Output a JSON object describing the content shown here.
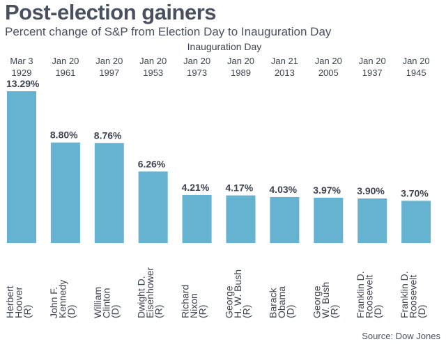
{
  "chart_data": {
    "type": "bar",
    "title": "Post-election gainers",
    "subtitle": "Percent change of S&P from Election Day to Inauguration Day",
    "top_axis_label": "Inauguration Day",
    "source": "Source: Dow Jones",
    "bar_color": "#66b3d1",
    "grid": false,
    "ylim": [
      0,
      13.29
    ],
    "categories": [
      {
        "date": [
          "Mar 3",
          "1929"
        ],
        "name": [
          "Herbert",
          "Hoover",
          "(R)"
        ]
      },
      {
        "date": [
          "Jan 20",
          "1961"
        ],
        "name": [
          "John F.",
          "Kennedy",
          "(D)"
        ]
      },
      {
        "date": [
          "Jan 20",
          "1997"
        ],
        "name": [
          "William",
          "Clinton",
          "(D)"
        ]
      },
      {
        "date": [
          "Jan 20",
          "1953"
        ],
        "name": [
          "Dwight D.",
          "Eisenhower",
          "(R)"
        ]
      },
      {
        "date": [
          "Jan 20",
          "1973"
        ],
        "name": [
          "Richard",
          "Nixon",
          "(R)"
        ]
      },
      {
        "date": [
          "Jan 20",
          "1989"
        ],
        "name": [
          "George",
          "H. W. Bush",
          "(R)"
        ]
      },
      {
        "date": [
          "Jan 21",
          "2013"
        ],
        "name": [
          "Barack",
          "Obama",
          "(D)"
        ]
      },
      {
        "date": [
          "Jan 20",
          "2005"
        ],
        "name": [
          "George",
          "W. Bush",
          "(R)"
        ]
      },
      {
        "date": [
          "Jan 20",
          "1937"
        ],
        "name": [
          "Franklin D.",
          "Roosevelt",
          "(D)"
        ]
      },
      {
        "date": [
          "Jan 20",
          "1945"
        ],
        "name": [
          "Franklin D.",
          "Roosevelt",
          "(D)"
        ]
      }
    ],
    "values": [
      13.29,
      8.8,
      8.76,
      6.26,
      4.21,
      4.17,
      4.03,
      3.97,
      3.9,
      3.7
    ],
    "value_labels": [
      "13.29%",
      "8.80%",
      "8.76%",
      "6.26%",
      "4.21%",
      "4.17%",
      "4.03%",
      "3.97%",
      "3.90%",
      "3.70%"
    ]
  }
}
